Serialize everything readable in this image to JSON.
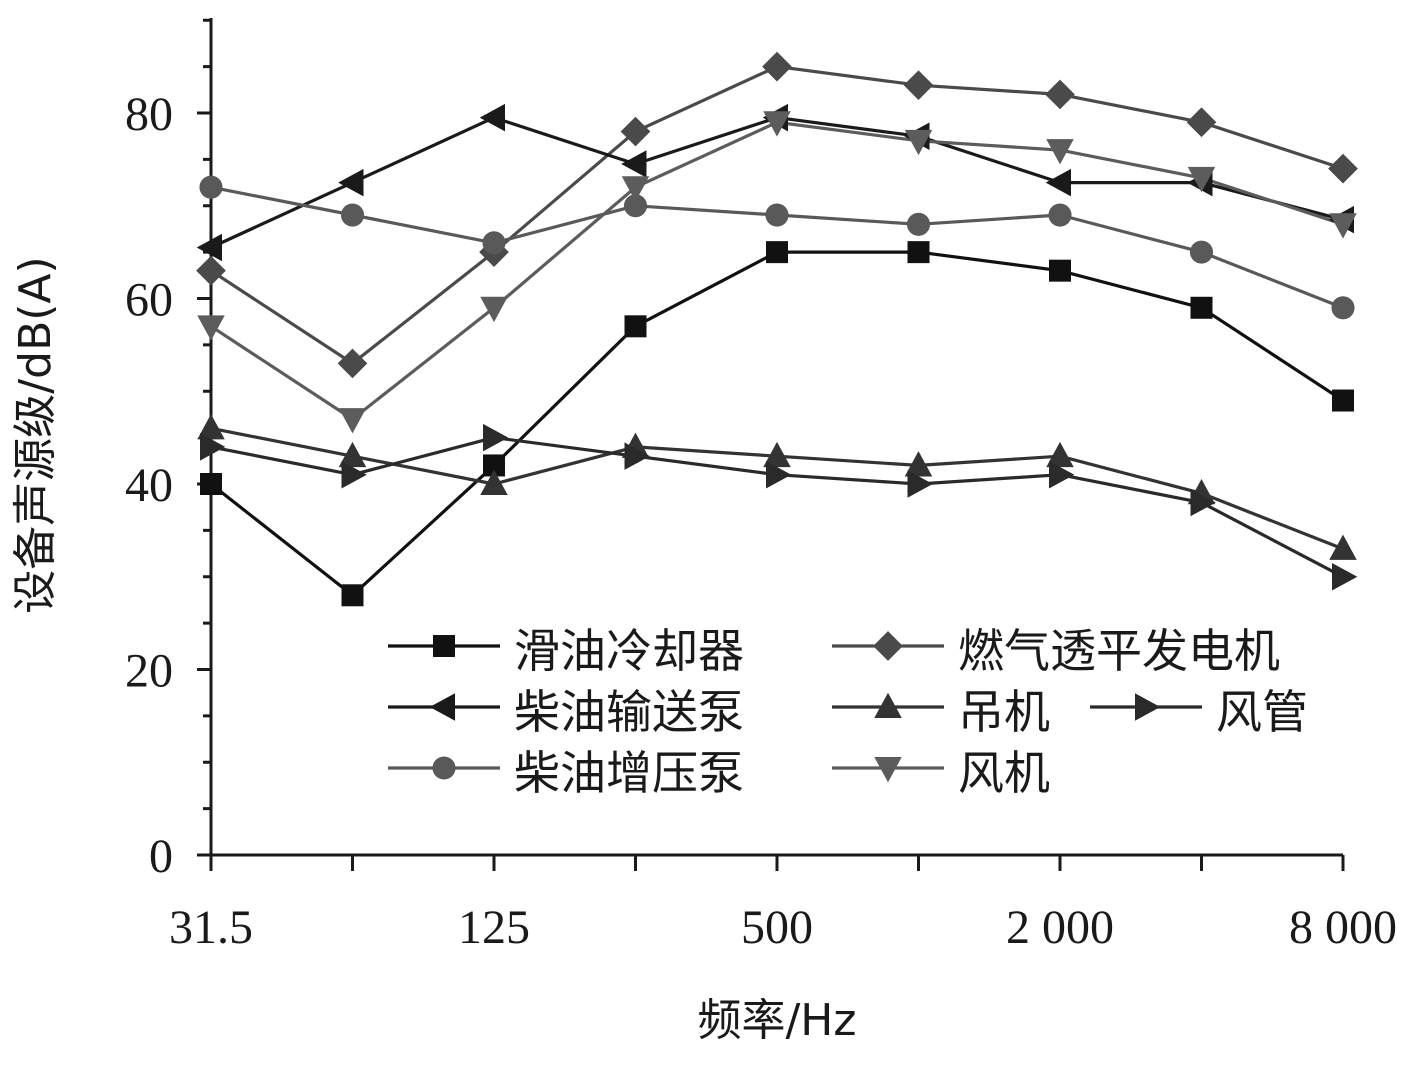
{
  "chart_data": {
    "type": "line",
    "title": "",
    "xlabel": "频率/Hz",
    "ylabel": "设备声源级/dB(A)",
    "x_scale": "log2",
    "categories": [
      "31.5",
      "63",
      "125",
      "250",
      "500",
      "1 000",
      "2 000",
      "4 000",
      "8 000"
    ],
    "x_tick_labels": [
      "31.5",
      "125",
      "500",
      "2 000",
      "8 000"
    ],
    "x": [
      31.5,
      63,
      125,
      250,
      500,
      1000,
      2000,
      4000,
      8000
    ],
    "y_ticks": [
      "0",
      "20",
      "40",
      "60",
      "80"
    ],
    "ylim": [
      0,
      90
    ],
    "grid": false,
    "legend_position": "lower-right",
    "series": [
      {
        "name": "滑油冷却器",
        "marker": "square",
        "color": "#111111",
        "values": [
          40,
          28,
          42,
          57,
          65,
          65,
          63,
          59,
          49
        ]
      },
      {
        "name": "燃气透平发电机",
        "marker": "diamond",
        "color": "#4a4a4a",
        "values": [
          63,
          53,
          65,
          78,
          85,
          83,
          82,
          79,
          74
        ]
      },
      {
        "name": "柴油输送泵",
        "marker": "triangle-left",
        "color": "#1a1a1a",
        "values": [
          65.5,
          72.5,
          79.5,
          74.5,
          79.5,
          77.5,
          72.5,
          72.5,
          68.5
        ]
      },
      {
        "name": "吊机",
        "marker": "triangle-up",
        "color": "#333333",
        "values": [
          46,
          43,
          40,
          44,
          43,
          42,
          43,
          39,
          33
        ]
      },
      {
        "name": "风管",
        "marker": "triangle-right",
        "color": "#2a2a2a",
        "values": [
          44,
          41,
          45,
          43,
          41,
          40,
          41,
          38,
          30
        ]
      },
      {
        "name": "柴油增压泵",
        "marker": "circle",
        "color": "#595959",
        "values": [
          72,
          69,
          66,
          70,
          69,
          68,
          69,
          65,
          59
        ]
      },
      {
        "name": "风机",
        "marker": "triangle-down",
        "color": "#5c5c5c",
        "values": [
          57,
          47,
          59,
          72,
          79,
          77,
          76,
          73,
          68
        ]
      }
    ]
  }
}
